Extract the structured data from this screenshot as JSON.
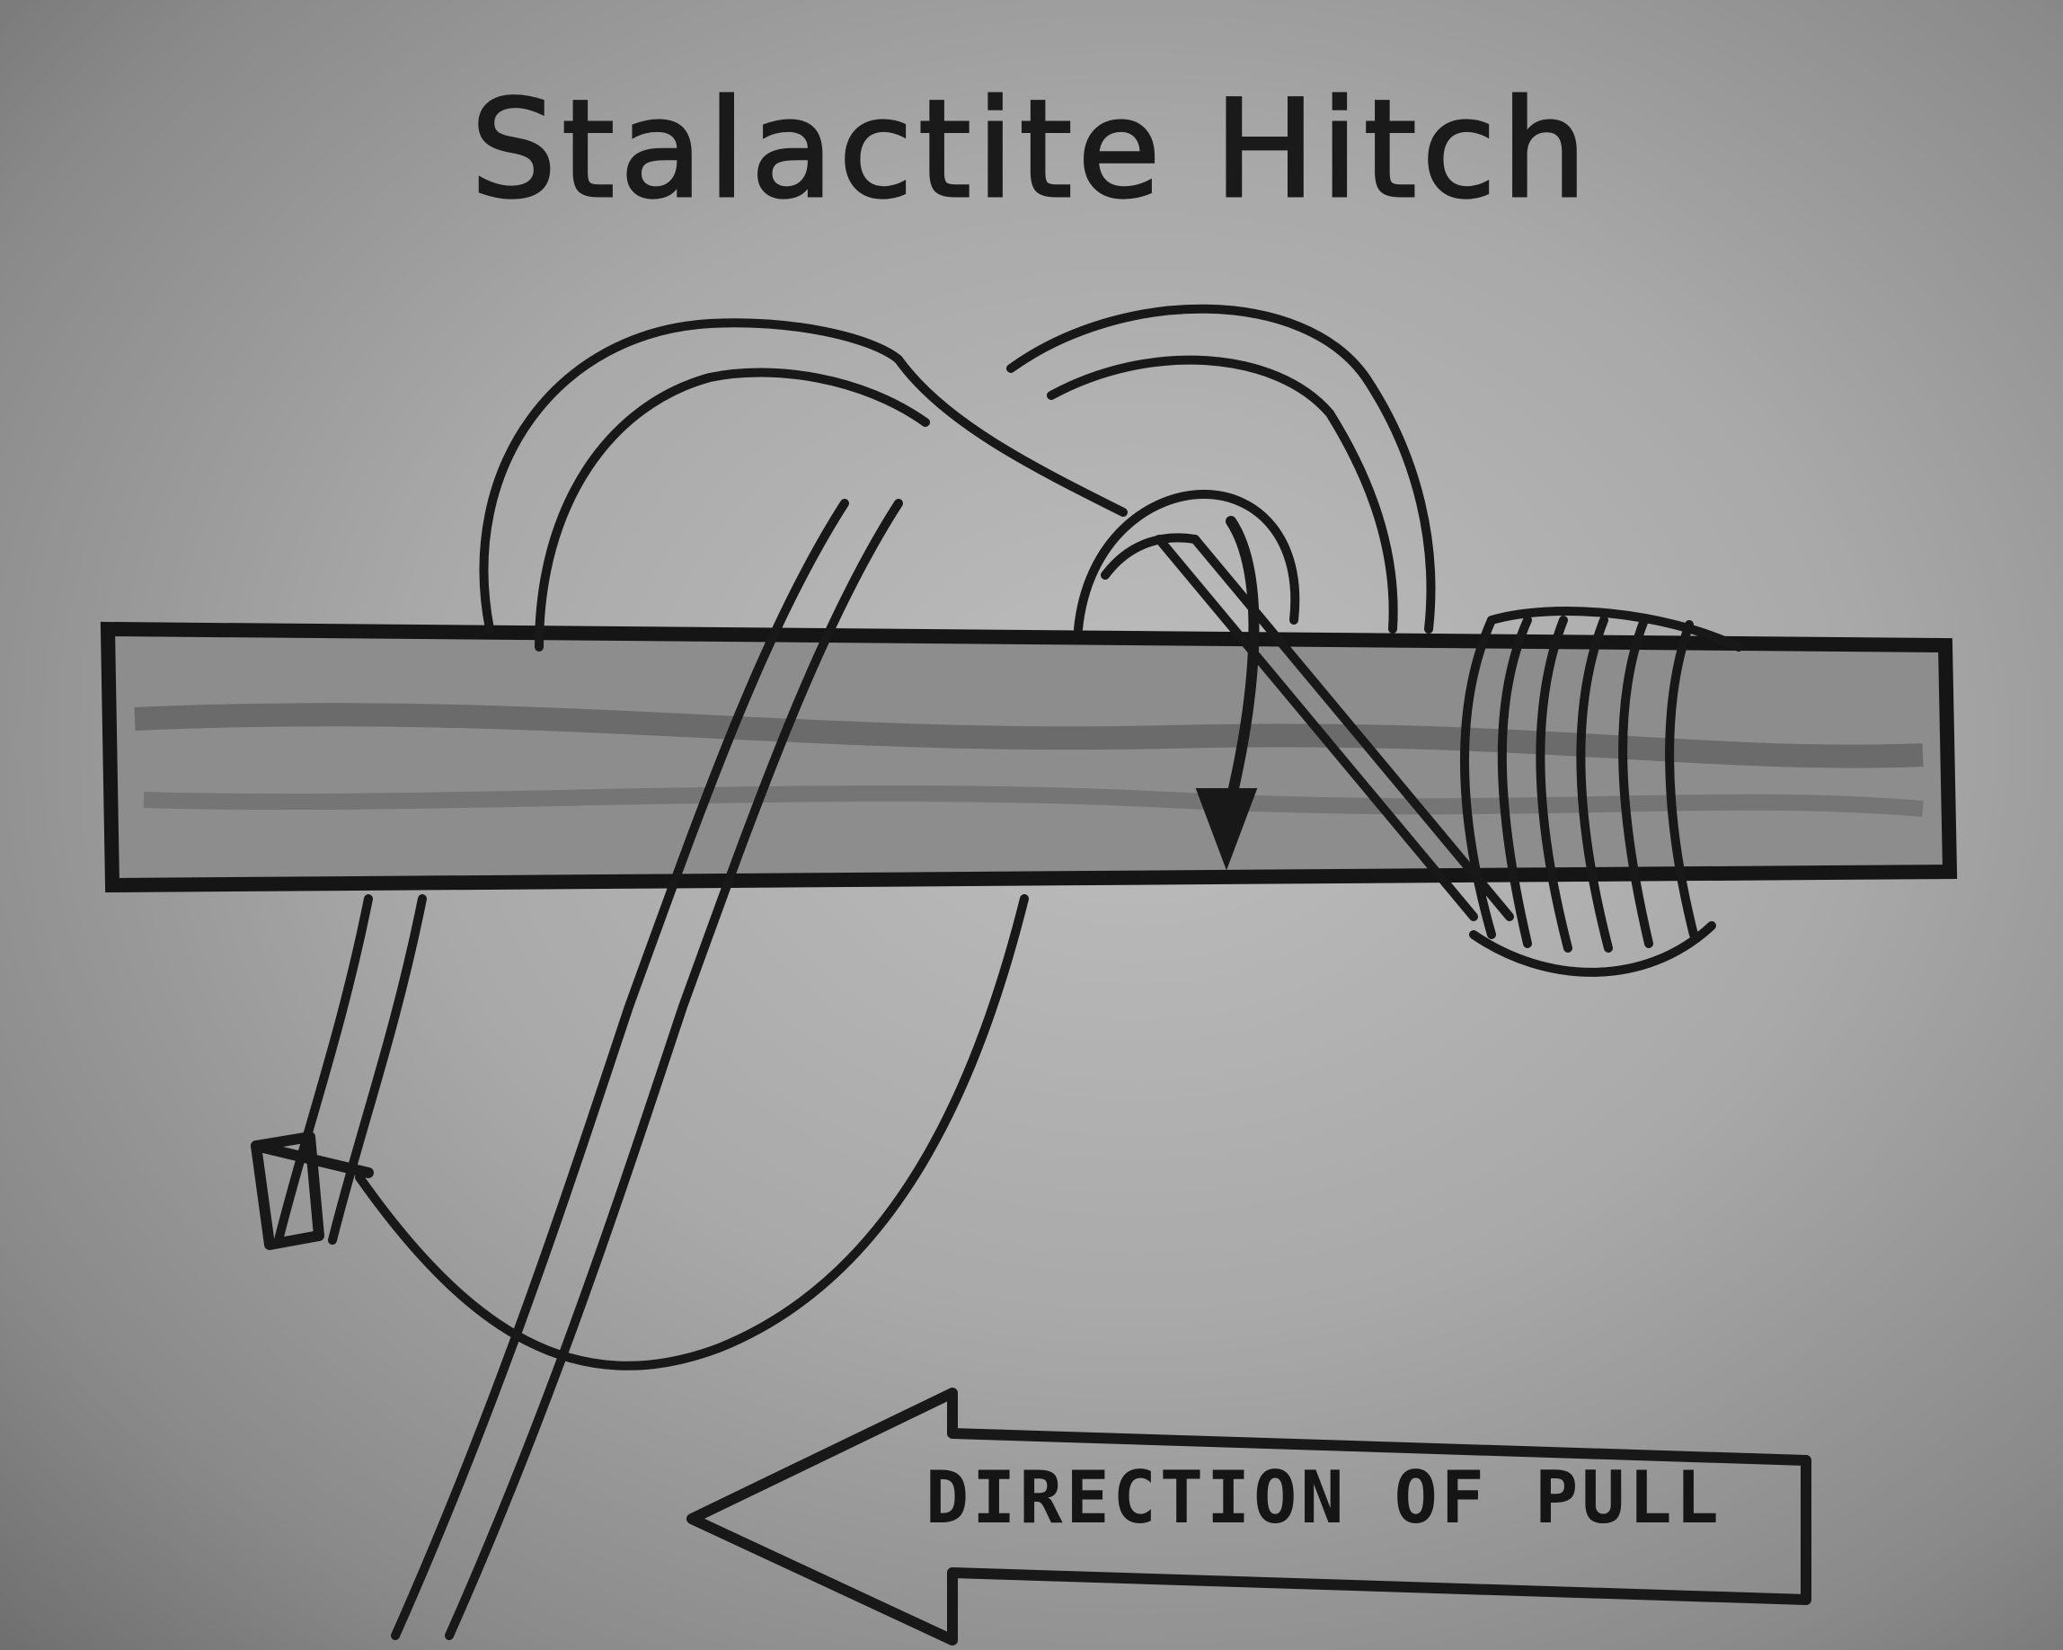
{
  "title": "Stalactite Hitch",
  "arrow_label": "DIRECTION OF PULL"
}
